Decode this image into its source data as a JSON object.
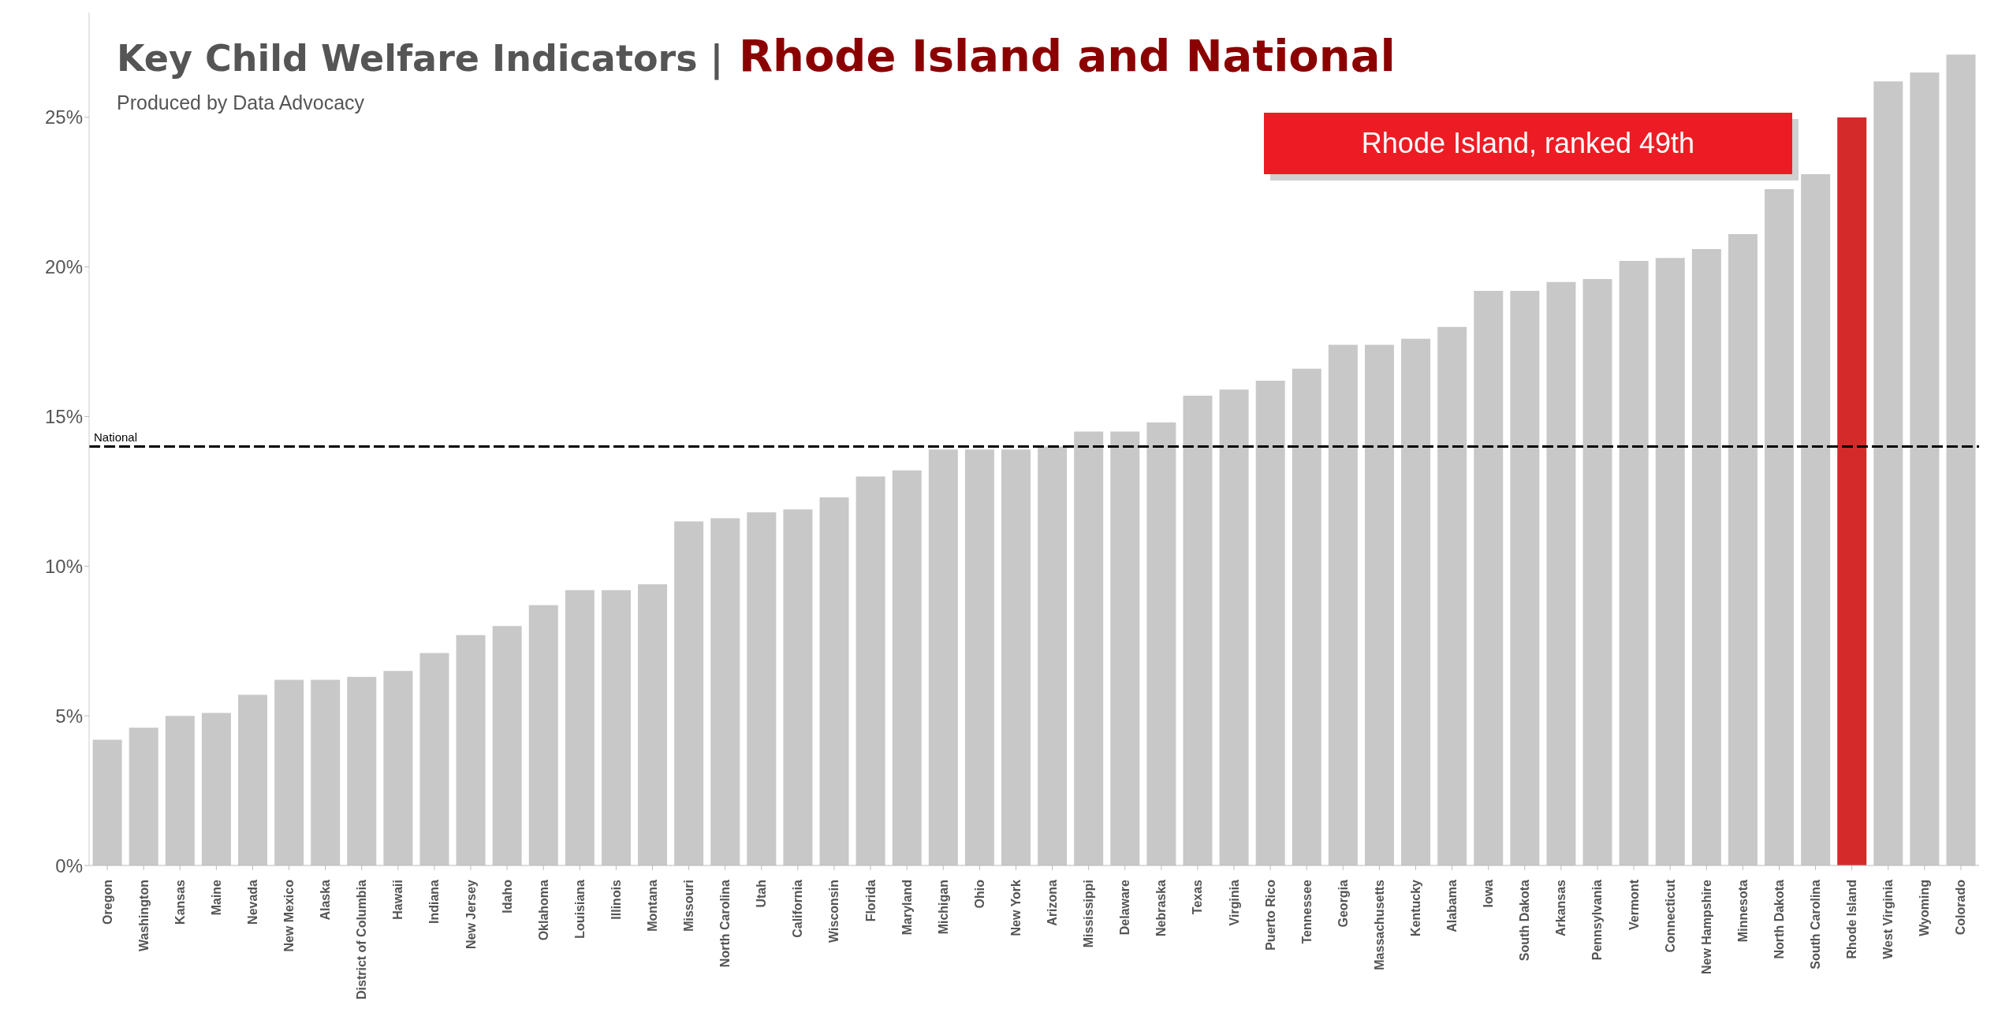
{
  "chart_data": {
    "type": "bar",
    "title": "Key Child Welfare Indicators | Rhode Island and National",
    "subtitle": "Produced by Data Advocacy",
    "categories": [
      "Oregon",
      "Washington",
      "Kansas",
      "Maine",
      "Nevada",
      "New Mexico",
      "Alaska",
      "District of Columbia",
      "Hawaii",
      "Indiana",
      "New Jersey",
      "Idaho",
      "Oklahoma",
      "Louisiana",
      "Illinois",
      "Montana",
      "Missouri",
      "North Carolina",
      "Utah",
      "California",
      "Wisconsin",
      "Florida",
      "Maryland",
      "Michigan",
      "Ohio",
      "New York",
      "Arizona",
      "Mississippi",
      "Delaware",
      "Nebraska",
      "Texas",
      "Virginia",
      "Puerto Rico",
      "Tennessee",
      "Georgia",
      "Massachusetts",
      "Kentucky",
      "Alabama",
      "Iowa",
      "South Dakota",
      "Arkansas",
      "Pennsylvania",
      "Vermont",
      "Connecticut",
      "New Hampshire",
      "Minnesota",
      "North Dakota",
      "South Carolina",
      "Rhode Island",
      "West Virginia",
      "Wyoming",
      "Colorado"
    ],
    "values": [
      4.2,
      4.6,
      5.0,
      5.1,
      5.7,
      6.2,
      6.2,
      6.3,
      6.5,
      7.1,
      7.7,
      8.0,
      8.7,
      9.2,
      9.2,
      9.4,
      11.5,
      11.6,
      11.8,
      11.9,
      12.3,
      13.0,
      13.2,
      13.9,
      13.9,
      13.9,
      14.0,
      14.5,
      14.5,
      14.8,
      15.7,
      15.9,
      16.2,
      16.6,
      17.4,
      17.4,
      17.6,
      18.0,
      19.2,
      19.2,
      19.5,
      19.6,
      20.2,
      20.3,
      20.6,
      21.1,
      22.6,
      23.1,
      25.0,
      26.2,
      26.5,
      27.1
    ],
    "colors": [
      "#c8c8c8",
      "#c8c8c8",
      "#c8c8c8",
      "#c8c8c8",
      "#c8c8c8",
      "#c8c8c8",
      "#c8c8c8",
      "#c8c8c8",
      "#c8c8c8",
      "#c8c8c8",
      "#c8c8c8",
      "#c8c8c8",
      "#c8c8c8",
      "#c8c8c8",
      "#c8c8c8",
      "#c8c8c8",
      "#c8c8c8",
      "#c8c8c8",
      "#c8c8c8",
      "#c8c8c8",
      "#c8c8c8",
      "#c8c8c8",
      "#c8c8c8",
      "#c8c8c8",
      "#c8c8c8",
      "#c8c8c8",
      "#c8c8c8",
      "#c8c8c8",
      "#c8c8c8",
      "#c8c8c8",
      "#c8c8c8",
      "#c8c8c8",
      "#c8c8c8",
      "#c8c8c8",
      "#c8c8c8",
      "#c8c8c8",
      "#c8c8c8",
      "#c8c8c8",
      "#c8c8c8",
      "#c8c8c8",
      "#c8c8c8",
      "#c8c8c8",
      "#c8c8c8",
      "#c8c8c8",
      "#c8c8c8",
      "#c8c8c8",
      "#c8c8c8",
      "#c8c8c8",
      "#d42a2a",
      "#c8c8c8",
      "#c8c8c8",
      "#c8c8c8"
    ],
    "ylim": [
      0,
      28.5
    ],
    "yticks": [
      {
        "value": 0,
        "label": "0%"
      },
      {
        "value": 5,
        "label": "5%"
      },
      {
        "value": 10,
        "label": "10%"
      },
      {
        "value": 15,
        "label": "15%"
      },
      {
        "value": 20,
        "label": "20%"
      },
      {
        "value": 25,
        "label": "25%"
      }
    ],
    "ref_lines": [
      {
        "axis": "y",
        "value": 14,
        "label": "National",
        "color": "#000000",
        "line_style": "dashed"
      }
    ],
    "annotations": [
      "Rhode Island, ranked 49th"
    ],
    "grid": false
  }
}
